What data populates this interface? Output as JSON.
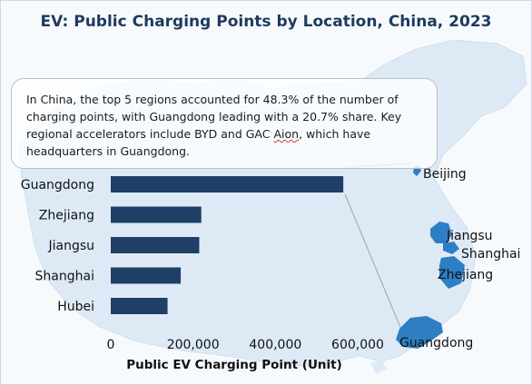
{
  "title": "EV: Public Charging Points by Location, China, 2023",
  "callout": {
    "text_before": "In China, the top 5 regions accounted for 48.3% of the number of charging points, with Guangdong leading with a 20.7% share. Key regional accelerators include BYD and GAC ",
    "text_marked": "Aion",
    "text_after": ", which have headquarters in Guangdong."
  },
  "colors": {
    "bar": "#1f3f66",
    "map_fill": "#ddeaf6",
    "map_highlight": "#2e7ec4",
    "title": "#1f3a5f"
  },
  "map_labels": [
    "Beijing",
    "Jiangsu",
    "Shanghai",
    "Zhejiang",
    "Guangdong"
  ],
  "chart_data": {
    "type": "bar",
    "orientation": "horizontal",
    "categories": [
      "Guangdong",
      "Zhejiang",
      "Jiangsu",
      "Shanghai",
      "Hubei"
    ],
    "values": [
      565000,
      220000,
      215000,
      170000,
      138000
    ],
    "xlabel": "Public EV Charging Point (Unit)",
    "ylabel": "",
    "xlim": [
      0,
      600000
    ],
    "xticks": [
      0,
      200000,
      400000,
      600000
    ],
    "xtick_labels": [
      "0",
      "200,000",
      "400,000",
      "600,000"
    ],
    "grid": false,
    "legend": "none"
  }
}
